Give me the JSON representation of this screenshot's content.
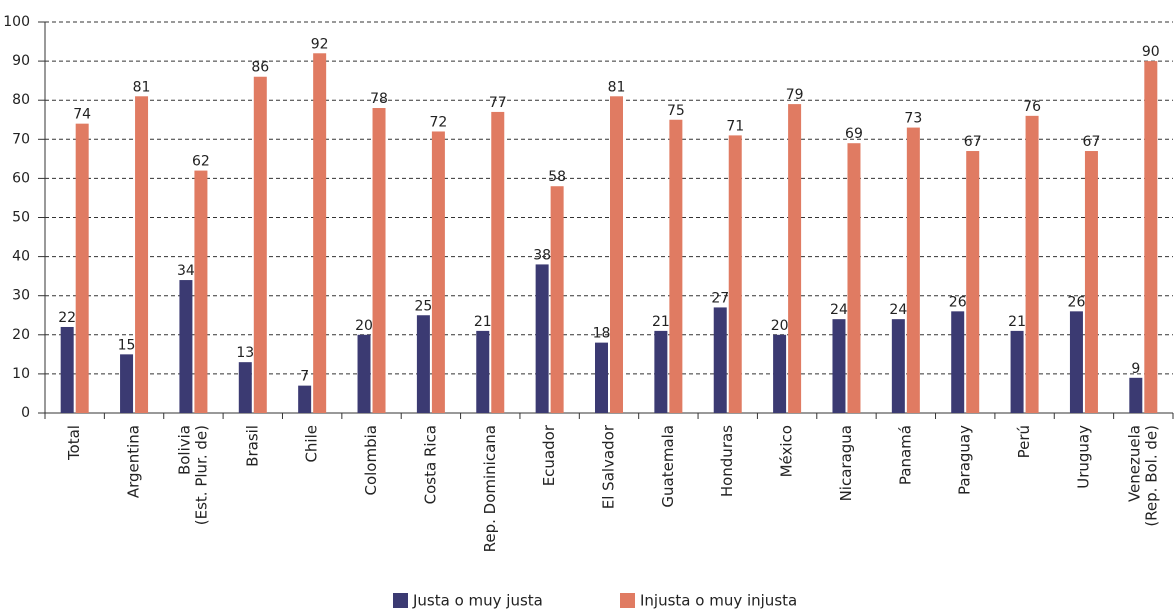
{
  "chart_data": {
    "type": "bar",
    "categories": [
      [
        "Total"
      ],
      [
        "Argentina"
      ],
      [
        "Bolivia",
        "(Est. Plur. de)"
      ],
      [
        "Brasil"
      ],
      [
        "Chile"
      ],
      [
        "Colombia"
      ],
      [
        "Costa Rica"
      ],
      [
        "Rep. Dominicana"
      ],
      [
        "Ecuador"
      ],
      [
        "El Salvador"
      ],
      [
        "Guatemala"
      ],
      [
        "Honduras"
      ],
      [
        "México"
      ],
      [
        "Nicaragua"
      ],
      [
        "Panamá"
      ],
      [
        "Paraguay"
      ],
      [
        "Perú"
      ],
      [
        "Uruguay"
      ],
      [
        "Venezuela",
        "(Rep. Bol. de)"
      ]
    ],
    "series": [
      {
        "name": "Justa o muy justa",
        "color": "#3b3a72",
        "values": [
          22,
          15,
          34,
          13,
          7,
          20,
          25,
          21,
          38,
          18,
          21,
          27,
          20,
          24,
          24,
          26,
          21,
          26,
          9
        ]
      },
      {
        "name": "Injusta o muy injusta",
        "color": "#e07b62",
        "values": [
          74,
          81,
          62,
          86,
          92,
          78,
          72,
          77,
          58,
          81,
          75,
          71,
          79,
          69,
          73,
          67,
          76,
          67,
          90
        ]
      }
    ],
    "ylim": [
      0,
      100
    ],
    "yticks": [
      0,
      10,
      20,
      30,
      40,
      50,
      60,
      70,
      80,
      90,
      100
    ],
    "grid": true,
    "legend": "bottom"
  }
}
